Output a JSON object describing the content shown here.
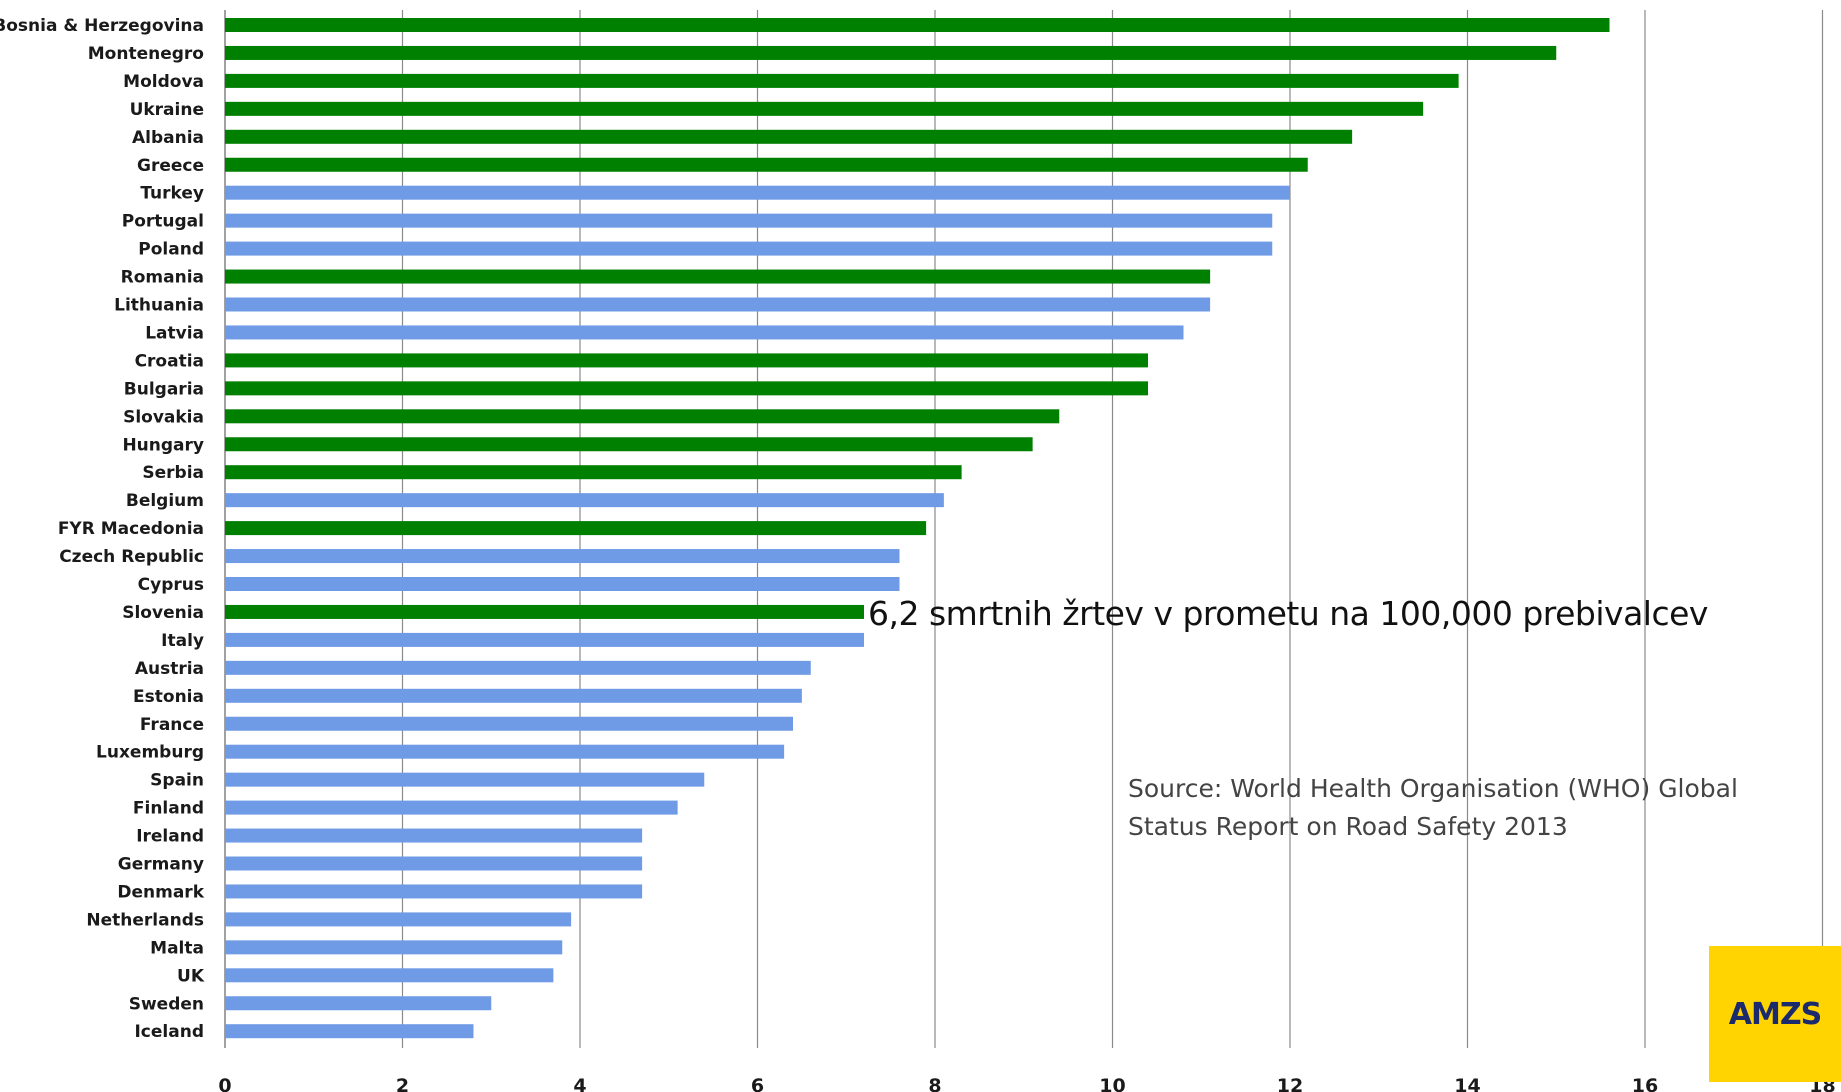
{
  "chart_data": {
    "type": "bar",
    "orientation": "horizontal",
    "categories": [
      "Bosnia & Herzegovina",
      "Montenegro",
      "Moldova",
      "Ukraine",
      "Albania",
      "Greece",
      "Turkey",
      "Portugal",
      "Poland",
      "Romania",
      "Lithuania",
      "Latvia",
      "Croatia",
      "Bulgaria",
      "Slovakia",
      "Hungary",
      "Serbia",
      "Belgium",
      "FYR Macedonia",
      "Czech Republic",
      "Cyprus",
      "Slovenia",
      "Italy",
      "Austria",
      "Estonia",
      "France",
      "Luxemburg",
      "Spain",
      "Finland",
      "Ireland",
      "Germany",
      "Denmark",
      "Netherlands",
      "Malta",
      "UK",
      "Sweden",
      "Iceland"
    ],
    "values": [
      15.6,
      15.0,
      13.9,
      13.5,
      12.7,
      12.2,
      12.0,
      11.8,
      11.8,
      11.1,
      11.1,
      10.8,
      10.4,
      10.4,
      9.4,
      9.1,
      8.3,
      8.1,
      7.9,
      7.6,
      7.6,
      7.2,
      7.2,
      6.6,
      6.5,
      6.4,
      6.3,
      5.4,
      5.1,
      4.7,
      4.7,
      4.7,
      3.9,
      3.8,
      3.7,
      3.0,
      2.8
    ],
    "groups": [
      "green",
      "green",
      "green",
      "green",
      "green",
      "green",
      "blue",
      "blue",
      "blue",
      "green",
      "blue",
      "blue",
      "green",
      "green",
      "green",
      "green",
      "green",
      "blue",
      "green",
      "blue",
      "blue",
      "green",
      "blue",
      "blue",
      "blue",
      "blue",
      "blue",
      "blue",
      "blue",
      "blue",
      "blue",
      "blue",
      "blue",
      "blue",
      "blue",
      "blue",
      "blue"
    ],
    "colors": {
      "green": "#008000",
      "blue": "#6f9be6",
      "grid": "#8a8a8a"
    },
    "xlim": [
      0,
      18
    ],
    "xticks": [
      "0",
      "2",
      "4",
      "6",
      "8",
      "10",
      "12",
      "14",
      "16",
      "18"
    ],
    "grid": true,
    "title": "",
    "xlabel": "",
    "ylabel": ""
  },
  "annotation": "6,2 smrtnih žrtev v prometu na  100,000 prebivalcev",
  "source": {
    "line1": "Source: World Health Organisation (WHO) Global",
    "line2": "Status Report on Road Safety 2013"
  },
  "logo": "AMZS"
}
